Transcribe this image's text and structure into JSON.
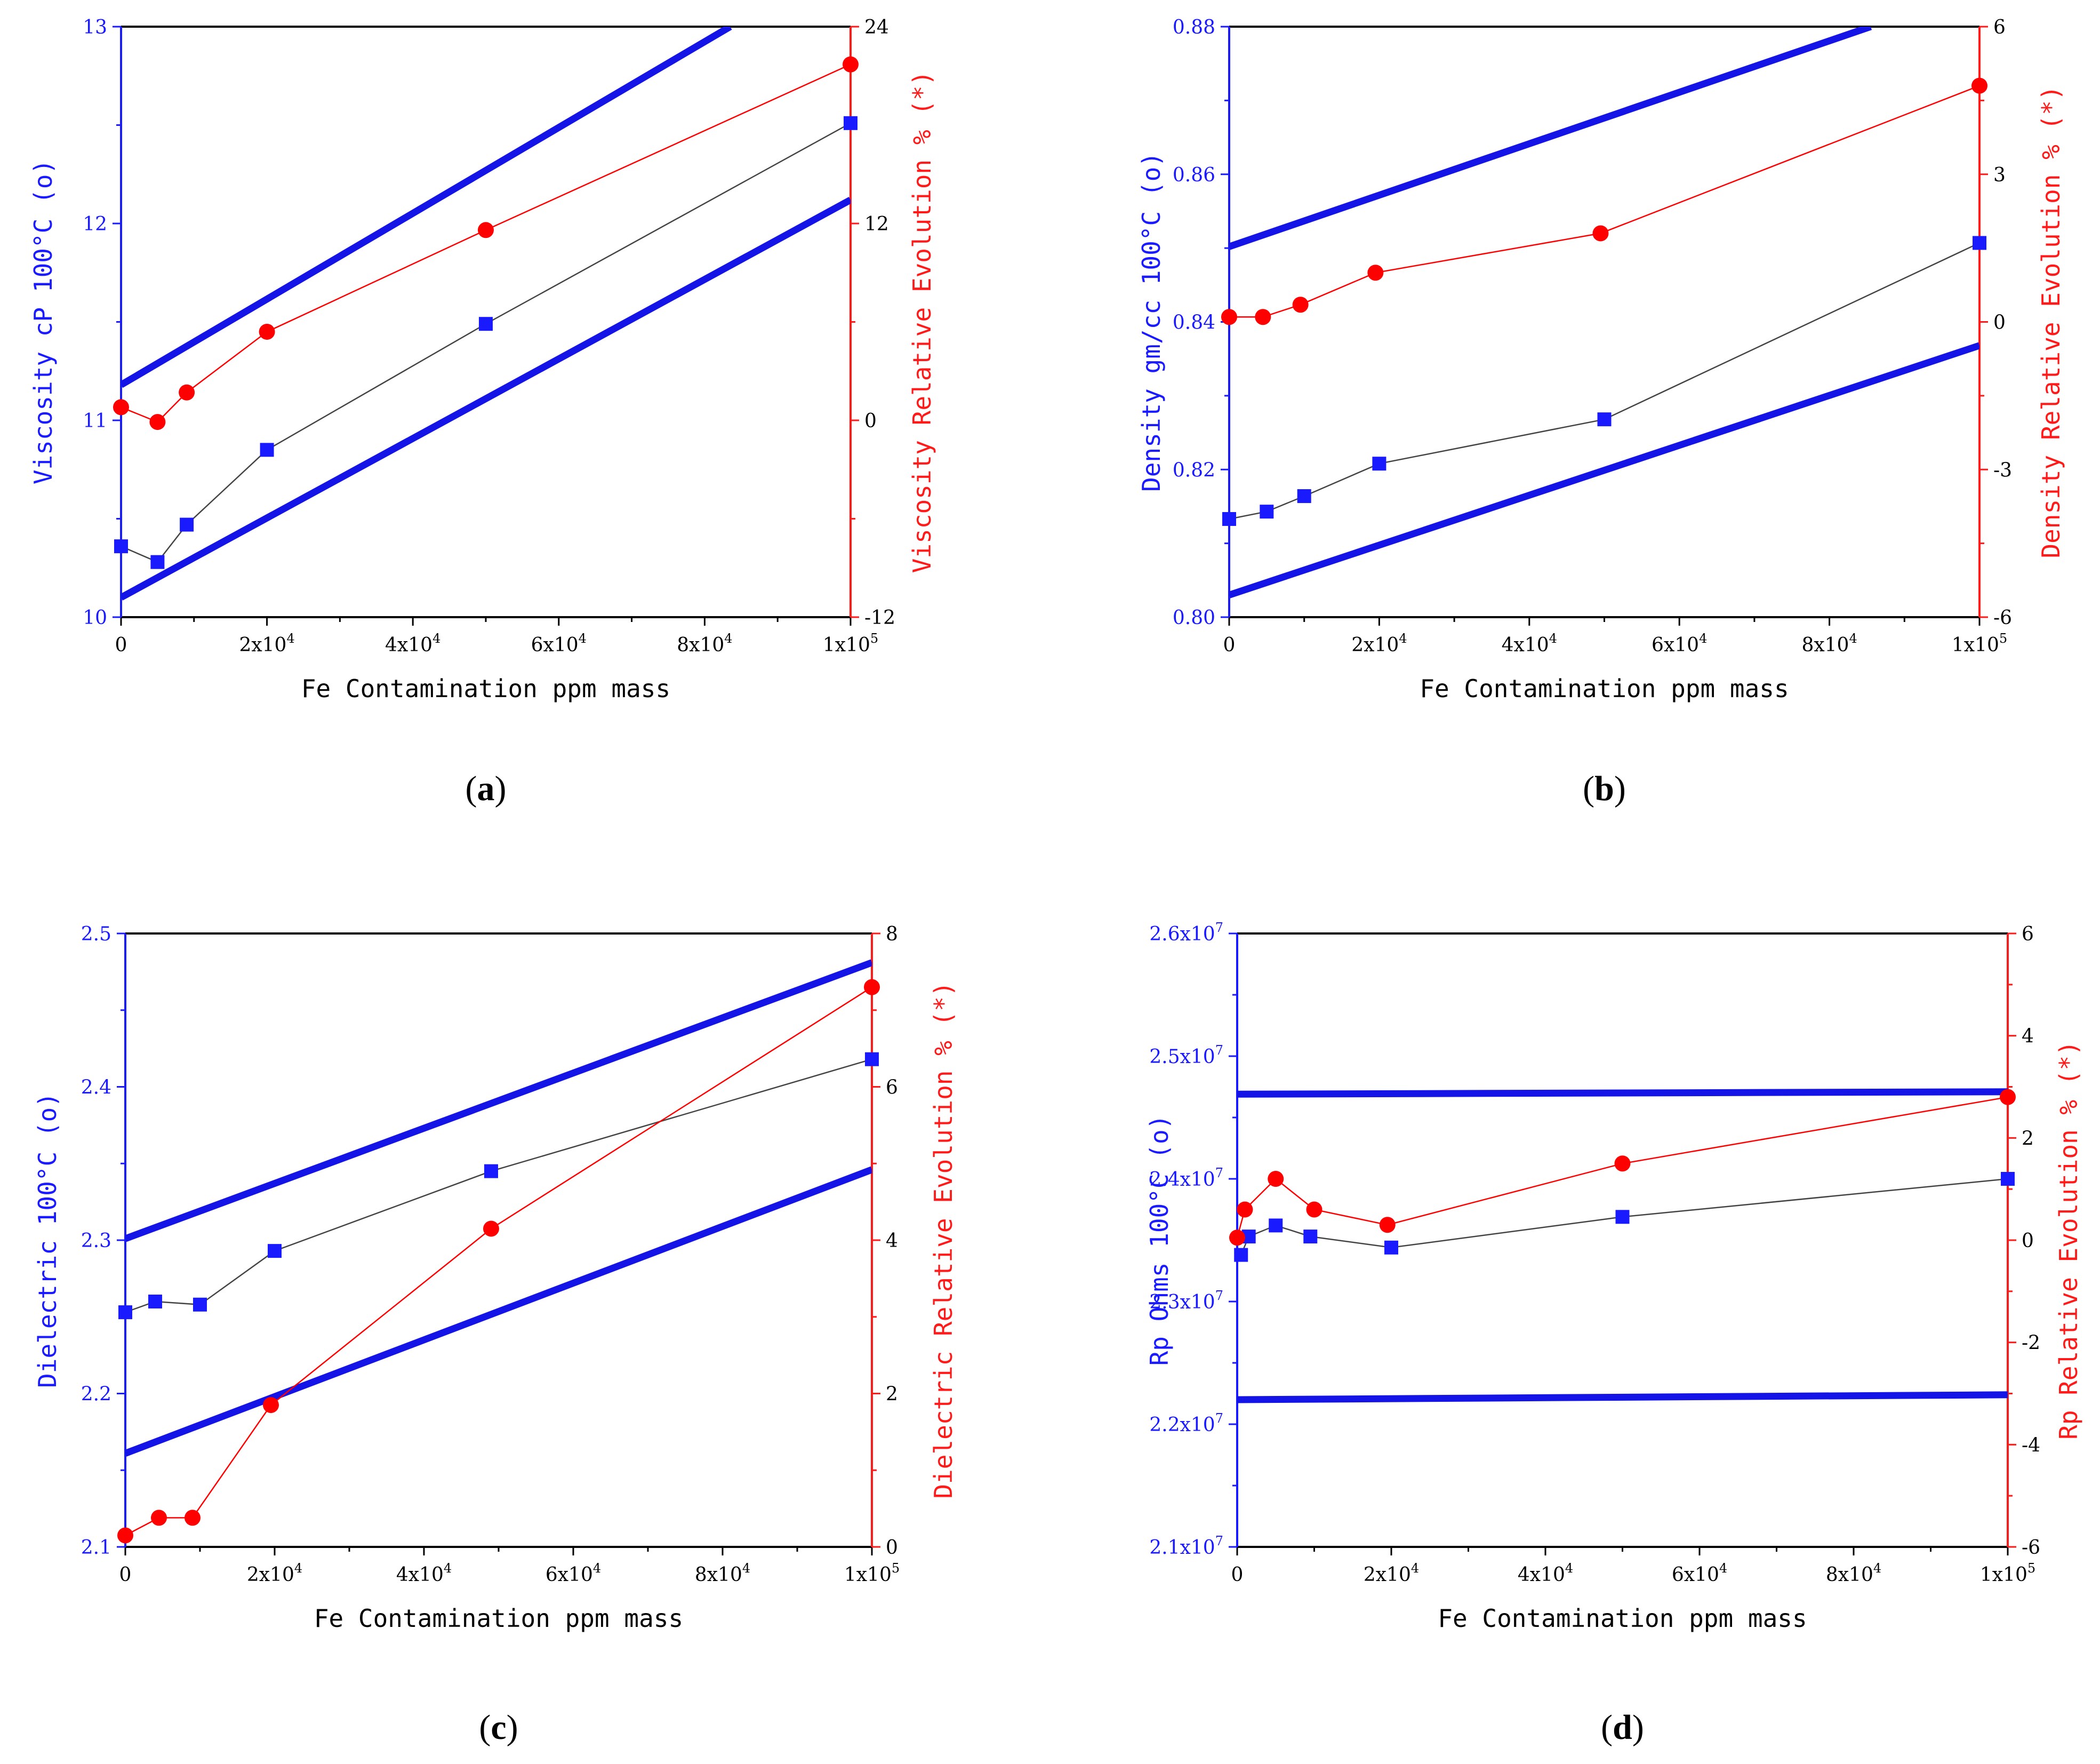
{
  "colors": {
    "left_axis": "#1a1aff",
    "right_axis": "#ff1a1a",
    "band": "#1414e6",
    "main_series": "#1a1aff",
    "rel_series": "#ff0000",
    "connector": "#444444"
  },
  "chart_data": [
    {
      "type": "line",
      "panel_label": "(a)",
      "panel_letter": "a",
      "xlabel": "Fe Contamination ppm mass",
      "ylabel_left": "Viscosity cP 100°C (o)",
      "ylabel_right": "Viscosity Relative Evolution % (*)",
      "xlim": [
        0,
        100000
      ],
      "ylim_left": [
        10,
        13
      ],
      "ylim_right": [
        -12,
        24
      ],
      "x_ticks": [
        {
          "v": 0,
          "base": "0",
          "exp": ""
        },
        {
          "v": 20000,
          "base": "2x10",
          "exp": "4"
        },
        {
          "v": 40000,
          "base": "4x10",
          "exp": "4"
        },
        {
          "v": 60000,
          "base": "6x10",
          "exp": "4"
        },
        {
          "v": 80000,
          "base": "8x10",
          "exp": "4"
        },
        {
          "v": 100000,
          "base": "1x10",
          "exp": "5"
        }
      ],
      "y_left_ticks": [
        {
          "v": 10,
          "base": "10",
          "exp": ""
        },
        {
          "v": 11,
          "base": "11",
          "exp": ""
        },
        {
          "v": 12,
          "base": "12",
          "exp": ""
        },
        {
          "v": 13,
          "base": "13",
          "exp": ""
        }
      ],
      "y_right_ticks": [
        {
          "v": -12,
          "base": "-12",
          "exp": ""
        },
        {
          "v": 0,
          "base": "0",
          "exp": ""
        },
        {
          "v": 12,
          "base": "12",
          "exp": ""
        },
        {
          "v": 24,
          "base": "24",
          "exp": ""
        }
      ],
      "series": [
        {
          "name": "Viscosity (o)",
          "axis": "left",
          "marker": "square",
          "x": [
            0,
            5000,
            9000,
            20000,
            50000,
            100000
          ],
          "y": [
            10.36,
            10.28,
            10.47,
            10.85,
            11.49,
            12.51
          ]
        },
        {
          "name": "Viscosity Relative Evolution % (*)",
          "axis": "right",
          "marker": "circle",
          "x": [
            0,
            5000,
            9000,
            20000,
            50000,
            100000
          ],
          "y": [
            0.8,
            -0.1,
            1.7,
            5.4,
            11.6,
            21.7
          ]
        }
      ],
      "bands": [
        {
          "x": [
            0,
            83500
          ],
          "y": [
            11.18,
            13.0
          ]
        },
        {
          "x": [
            0,
            100000
          ],
          "y": [
            10.1,
            12.12
          ]
        }
      ]
    },
    {
      "type": "line",
      "panel_label": "(b)",
      "panel_letter": "b",
      "xlabel": "Fe Contamination ppm mass",
      "ylabel_left": "Density gm/cc 100°C (o)",
      "ylabel_right": "Density Relative Evolution % (*)",
      "xlim": [
        0,
        100000
      ],
      "ylim_left": [
        0.8,
        0.88
      ],
      "ylim_right": [
        -6,
        6
      ],
      "x_ticks": [
        {
          "v": 0,
          "base": "0",
          "exp": ""
        },
        {
          "v": 20000,
          "base": "2x10",
          "exp": "4"
        },
        {
          "v": 40000,
          "base": "4x10",
          "exp": "4"
        },
        {
          "v": 60000,
          "base": "6x10",
          "exp": "4"
        },
        {
          "v": 80000,
          "base": "8x10",
          "exp": "4"
        },
        {
          "v": 100000,
          "base": "1x10",
          "exp": "5"
        }
      ],
      "y_left_ticks": [
        {
          "v": 0.8,
          "base": "0.80",
          "exp": ""
        },
        {
          "v": 0.82,
          "base": "0.82",
          "exp": ""
        },
        {
          "v": 0.84,
          "base": "0.84",
          "exp": ""
        },
        {
          "v": 0.86,
          "base": "0.86",
          "exp": ""
        },
        {
          "v": 0.88,
          "base": "0.88",
          "exp": ""
        }
      ],
      "y_right_ticks": [
        {
          "v": -6,
          "base": "-6",
          "exp": ""
        },
        {
          "v": -3,
          "base": "-3",
          "exp": ""
        },
        {
          "v": 0,
          "base": "0",
          "exp": ""
        },
        {
          "v": 3,
          "base": "3",
          "exp": ""
        },
        {
          "v": 6,
          "base": "6",
          "exp": ""
        }
      ],
      "series": [
        {
          "name": "Density (o)",
          "axis": "left",
          "marker": "square",
          "x": [
            0,
            5000,
            10000,
            20000,
            50000,
            100000
          ],
          "y": [
            0.8133,
            0.8143,
            0.8164,
            0.8208,
            0.8268,
            0.8507
          ]
        },
        {
          "name": "Density Relative Evolution % (*)",
          "axis": "right",
          "marker": "circle",
          "x": [
            0,
            4500,
            9500,
            19500,
            49500,
            100000
          ],
          "y": [
            0.1,
            0.1,
            0.35,
            1.0,
            1.8,
            4.8
          ]
        }
      ],
      "bands": [
        {
          "x": [
            0,
            85500
          ],
          "y": [
            0.8502,
            0.88
          ]
        },
        {
          "x": [
            0,
            100000
          ],
          "y": [
            0.803,
            0.8368
          ]
        }
      ]
    },
    {
      "type": "line",
      "panel_label": "(c)",
      "panel_letter": "c",
      "xlabel": "Fe Contamination ppm mass",
      "ylabel_left": "Dielectric 100°C (o)",
      "ylabel_right": "Dielectric Relative Evolution % (*)",
      "xlim": [
        0,
        100000
      ],
      "ylim_left": [
        2.1,
        2.5
      ],
      "ylim_right": [
        0,
        8
      ],
      "x_ticks": [
        {
          "v": 0,
          "base": "0",
          "exp": ""
        },
        {
          "v": 20000,
          "base": "2x10",
          "exp": "4"
        },
        {
          "v": 40000,
          "base": "4x10",
          "exp": "4"
        },
        {
          "v": 60000,
          "base": "6x10",
          "exp": "4"
        },
        {
          "v": 80000,
          "base": "8x10",
          "exp": "4"
        },
        {
          "v": 100000,
          "base": "1x10",
          "exp": "5"
        }
      ],
      "y_left_ticks": [
        {
          "v": 2.1,
          "base": "2.1",
          "exp": ""
        },
        {
          "v": 2.2,
          "base": "2.2",
          "exp": ""
        },
        {
          "v": 2.3,
          "base": "2.3",
          "exp": ""
        },
        {
          "v": 2.4,
          "base": "2.4",
          "exp": ""
        },
        {
          "v": 2.5,
          "base": "2.5",
          "exp": ""
        }
      ],
      "y_right_ticks": [
        {
          "v": 0,
          "base": "0",
          "exp": ""
        },
        {
          "v": 2,
          "base": "2",
          "exp": ""
        },
        {
          "v": 4,
          "base": "4",
          "exp": ""
        },
        {
          "v": 6,
          "base": "6",
          "exp": ""
        },
        {
          "v": 8,
          "base": "8",
          "exp": ""
        }
      ],
      "series": [
        {
          "name": "Dielectric (o)",
          "axis": "left",
          "marker": "square",
          "x": [
            0,
            4000,
            10000,
            20000,
            49000,
            100000
          ],
          "y": [
            2.253,
            2.26,
            2.258,
            2.293,
            2.345,
            2.418
          ]
        },
        {
          "name": "Dielectric Relative Evolution % (*)",
          "axis": "right",
          "marker": "circle",
          "x": [
            0,
            4500,
            9000,
            19500,
            49000,
            100000
          ],
          "y": [
            0.15,
            0.38,
            0.38,
            1.85,
            4.15,
            7.3
          ]
        }
      ],
      "bands": [
        {
          "x": [
            0,
            100000
          ],
          "y": [
            2.301,
            2.481
          ]
        },
        {
          "x": [
            0,
            100000
          ],
          "y": [
            2.161,
            2.346
          ]
        }
      ]
    },
    {
      "type": "line",
      "panel_label": "(d)",
      "panel_letter": "d",
      "xlabel": "Fe Contamination ppm mass",
      "ylabel_left": "Rp Ohms 100°C (o)",
      "ylabel_right": "Rp Relative Evolution % (*)",
      "xlim": [
        0,
        100000
      ],
      "ylim_left": [
        21000000,
        26000000
      ],
      "ylim_right": [
        -6,
        6
      ],
      "x_ticks": [
        {
          "v": 0,
          "base": "0",
          "exp": ""
        },
        {
          "v": 20000,
          "base": "2x10",
          "exp": "4"
        },
        {
          "v": 40000,
          "base": "4x10",
          "exp": "4"
        },
        {
          "v": 60000,
          "base": "6x10",
          "exp": "4"
        },
        {
          "v": 80000,
          "base": "8x10",
          "exp": "4"
        },
        {
          "v": 100000,
          "base": "1x10",
          "exp": "5"
        }
      ],
      "y_left_ticks": [
        {
          "v": 21000000,
          "base": "2.1x10",
          "exp": "7"
        },
        {
          "v": 22000000,
          "base": "2.2x10",
          "exp": "7"
        },
        {
          "v": 23000000,
          "base": "2.3x10",
          "exp": "7"
        },
        {
          "v": 24000000,
          "base": "2.4x10",
          "exp": "7"
        },
        {
          "v": 25000000,
          "base": "2.5x10",
          "exp": "7"
        },
        {
          "v": 26000000,
          "base": "2.6x10",
          "exp": "7"
        }
      ],
      "y_right_ticks": [
        {
          "v": -6,
          "base": "-6",
          "exp": ""
        },
        {
          "v": -4,
          "base": "-4",
          "exp": ""
        },
        {
          "v": -2,
          "base": "-2",
          "exp": ""
        },
        {
          "v": 0,
          "base": "0",
          "exp": ""
        },
        {
          "v": 2,
          "base": "2",
          "exp": ""
        },
        {
          "v": 4,
          "base": "4",
          "exp": ""
        },
        {
          "v": 6,
          "base": "6",
          "exp": ""
        }
      ],
      "series": [
        {
          "name": "Rp (o)",
          "axis": "left",
          "marker": "square",
          "x": [
            500,
            1500,
            5000,
            9500,
            20000,
            50000,
            100000
          ],
          "y": [
            23380000,
            23530000,
            23620000,
            23530000,
            23440000,
            23690000,
            24000000
          ]
        },
        {
          "name": "Rp Relative Evolution % (*)",
          "axis": "right",
          "marker": "circle",
          "x": [
            0,
            1000,
            5000,
            10000,
            19500,
            50000,
            100000
          ],
          "y": [
            0.05,
            0.6,
            1.2,
            0.6,
            0.3,
            1.5,
            2.8
          ]
        }
      ],
      "bands": [
        {
          "x": [
            0,
            100000
          ],
          "y": [
            24690000,
            24710000
          ]
        },
        {
          "x": [
            0,
            100000
          ],
          "y": [
            22200000,
            22240000
          ]
        }
      ]
    }
  ]
}
